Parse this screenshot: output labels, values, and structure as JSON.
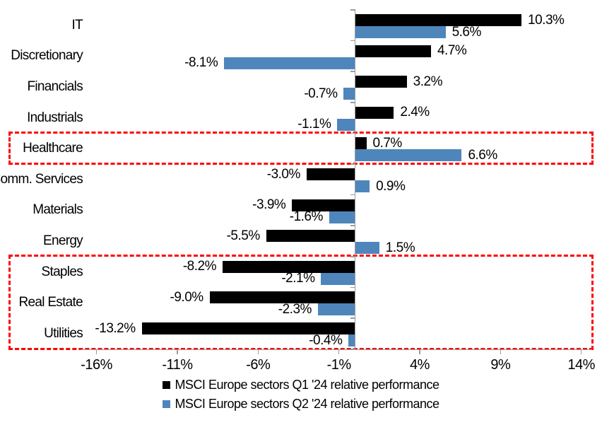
{
  "chart_data": {
    "type": "bar",
    "orientation": "horizontal",
    "title": "",
    "categories": [
      "IT",
      "Discretionary",
      "Financials",
      "Industrials",
      "Healthcare",
      "Comm. Services",
      "Materials",
      "Energy",
      "Staples",
      "Real Estate",
      "Utilities"
    ],
    "series": [
      {
        "name": "MSCI Europe sectors Q1 '24 relative performance",
        "color": "#000000",
        "values": [
          10.3,
          4.7,
          3.2,
          2.4,
          0.7,
          -3.0,
          -3.9,
          -5.5,
          -8.2,
          -9.0,
          -13.2
        ]
      },
      {
        "name": "MSCI Europe sectors Q2 '24 relative performance",
        "color": "#4E86BC",
        "values": [
          5.6,
          -8.1,
          -0.7,
          -1.1,
          6.6,
          0.9,
          -1.6,
          1.5,
          -2.1,
          -2.3,
          -0.4
        ]
      }
    ],
    "data_labels": [
      [
        "10.3%",
        "4.7%",
        "3.2%",
        "2.4%",
        "0.7%",
        "-3.0%",
        "-3.9%",
        "-5.5%",
        "-8.2%",
        "-9.0%",
        "-13.2%"
      ],
      [
        "5.6%",
        "-8.1%",
        "-0.7%",
        "-1.1%",
        "6.6%",
        "0.9%",
        "-1.6%",
        "1.5%",
        "-2.1%",
        "-2.3%",
        "-0.4%"
      ]
    ],
    "xlabel": "",
    "ylabel": "",
    "x_ticks": [
      -16,
      -11,
      -6,
      -1,
      4,
      9,
      14
    ],
    "x_tick_labels": [
      "-16%",
      "-11%",
      "-6%",
      "-1%",
      "4%",
      "9%",
      "14%"
    ],
    "xlim": [
      -17.0,
      14.7
    ],
    "grid": false,
    "legend_position": "bottom",
    "axis_color": "#9C9C9C",
    "highlight_boxes": [
      {
        "rows": [
          "Healthcare"
        ],
        "color": "#FF0000",
        "style": "dashed"
      },
      {
        "rows": [
          "Staples",
          "Real Estate",
          "Utilities"
        ],
        "color": "#FF0000",
        "style": "dashed"
      }
    ]
  },
  "legend": {
    "items": [
      {
        "label": "MSCI Europe sectors Q1 '24 relative performance",
        "color": "#000000"
      },
      {
        "label": "MSCI Europe sectors Q2 '24 relative performance",
        "color": "#4E86BC"
      }
    ]
  }
}
